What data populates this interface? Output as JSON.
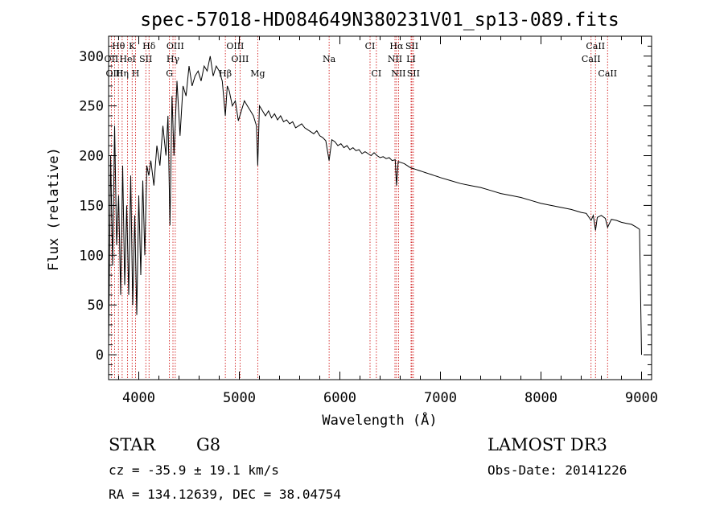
{
  "chart_data": {
    "type": "line",
    "title": "spec-57018-HD084649N380231V01_sp13-089.fits",
    "xlabel": "Wavelength (Å)",
    "ylabel": "Flux (relative)",
    "xlim": [
      3700,
      9100
    ],
    "ylim": [
      -25,
      320
    ],
    "xticks": [
      4000,
      5000,
      6000,
      7000,
      8000,
      9000
    ],
    "yticks": [
      0,
      50,
      100,
      150,
      200,
      250,
      300
    ],
    "series": [
      {
        "name": "flux",
        "x": [
          3700,
          3720,
          3740,
          3760,
          3780,
          3800,
          3820,
          3840,
          3860,
          3880,
          3900,
          3920,
          3940,
          3960,
          3980,
          4000,
          4020,
          4040,
          4060,
          4080,
          4100,
          4120,
          4150,
          4180,
          4210,
          4240,
          4270,
          4290,
          4310,
          4330,
          4350,
          4380,
          4410,
          4440,
          4470,
          4500,
          4530,
          4560,
          4590,
          4620,
          4650,
          4680,
          4710,
          4740,
          4770,
          4800,
          4830,
          4861,
          4880,
          4900,
          4930,
          4960,
          4990,
          5020,
          5050,
          5080,
          5110,
          5140,
          5170,
          5183,
          5200,
          5230,
          5260,
          5290,
          5320,
          5350,
          5380,
          5410,
          5440,
          5470,
          5500,
          5530,
          5560,
          5590,
          5620,
          5650,
          5680,
          5710,
          5740,
          5770,
          5800,
          5830,
          5860,
          5893,
          5920,
          5950,
          5980,
          6010,
          6040,
          6070,
          6100,
          6130,
          6160,
          6190,
          6220,
          6250,
          6280,
          6310,
          6340,
          6370,
          6400,
          6430,
          6460,
          6490,
          6520,
          6550,
          6563,
          6580,
          6610,
          6640,
          6670,
          6700,
          6730,
          6760,
          6790,
          6820,
          6850,
          6880,
          6910,
          6940,
          6970,
          7000,
          7100,
          7200,
          7300,
          7400,
          7500,
          7600,
          7700,
          7800,
          7900,
          8000,
          8100,
          8200,
          8300,
          8400,
          8450,
          8498,
          8520,
          8542,
          8560,
          8600,
          8640,
          8662,
          8700,
          8750,
          8800,
          8850,
          8900,
          8950,
          8980,
          8990,
          9000
        ],
        "y": [
          10,
          200,
          90,
          230,
          110,
          160,
          60,
          190,
          70,
          150,
          60,
          180,
          50,
          140,
          40,
          160,
          80,
          175,
          100,
          190,
          180,
          195,
          170,
          210,
          190,
          230,
          200,
          240,
          130,
          260,
          200,
          275,
          220,
          270,
          260,
          290,
          270,
          280,
          285,
          275,
          290,
          285,
          300,
          280,
          290,
          285,
          275,
          240,
          270,
          265,
          250,
          255,
          235,
          245,
          255,
          250,
          245,
          240,
          230,
          190,
          250,
          245,
          240,
          245,
          238,
          242,
          236,
          240,
          234,
          236,
          232,
          234,
          228,
          230,
          232,
          228,
          226,
          224,
          222,
          225,
          220,
          218,
          215,
          195,
          216,
          214,
          210,
          212,
          208,
          210,
          206,
          208,
          205,
          206,
          202,
          204,
          202,
          200,
          203,
          200,
          198,
          199,
          197,
          198,
          195,
          196,
          170,
          194,
          193,
          192,
          190,
          188,
          187,
          186,
          185,
          184,
          183,
          182,
          181,
          180,
          179,
          178,
          175,
          172,
          170,
          168,
          165,
          162,
          160,
          158,
          155,
          152,
          150,
          148,
          146,
          143,
          142,
          135,
          140,
          125,
          138,
          140,
          137,
          128,
          136,
          135,
          133,
          132,
          131,
          128,
          126,
          60,
          0
        ]
      }
    ],
    "spectral_lines": [
      {
        "name": "Hθ",
        "x": 3798,
        "row": 1
      },
      {
        "name": "OII",
        "x": 3727,
        "row": 2
      },
      {
        "name": "OIII",
        "x": 3760,
        "row": 3
      },
      {
        "name": "K",
        "x": 3934,
        "row": 1
      },
      {
        "name": "HeI",
        "x": 3889,
        "row": 2
      },
      {
        "name": "Hη",
        "x": 3835,
        "row": 3
      },
      {
        "name": "Hδ",
        "x": 4102,
        "row": 1
      },
      {
        "name": "SII",
        "x": 4070,
        "row": 2
      },
      {
        "name": "H",
        "x": 3968,
        "row": 3
      },
      {
        "name": "OIII",
        "x": 4363,
        "row": 1
      },
      {
        "name": "Hγ",
        "x": 4340,
        "row": 2
      },
      {
        "name": "G",
        "x": 4305,
        "row": 3
      },
      {
        "name": "OIII",
        "x": 4959,
        "row": 1
      },
      {
        "name": "OIII",
        "x": 5007,
        "row": 2
      },
      {
        "name": "Hβ",
        "x": 4861,
        "row": 3
      },
      {
        "name": "Mg",
        "x": 5183,
        "row": 3
      },
      {
        "name": "Na",
        "x": 5893,
        "row": 2
      },
      {
        "name": "CI",
        "x": 6300,
        "row": 1
      },
      {
        "name": "CI",
        "x": 6363,
        "row": 3
      },
      {
        "name": "Hα",
        "x": 6563,
        "row": 1
      },
      {
        "name": "NII",
        "x": 6548,
        "row": 2
      },
      {
        "name": "NII",
        "x": 6583,
        "row": 3
      },
      {
        "name": "SII",
        "x": 6716,
        "row": 1
      },
      {
        "name": "LI",
        "x": 6708,
        "row": 2
      },
      {
        "name": "SII",
        "x": 6731,
        "row": 3
      },
      {
        "name": "CaII",
        "x": 8542,
        "row": 1
      },
      {
        "name": "CaII",
        "x": 8498,
        "row": 2
      },
      {
        "name": "CaII",
        "x": 8662,
        "row": 3
      }
    ]
  },
  "footer": {
    "object_type": "STAR",
    "subclass": "G8",
    "survey": "LAMOST DR3",
    "redshift_text": "cz = -35.9 ± 19.1 km/s",
    "obs_date_text": "Obs-Date: 20141226",
    "coords_text": "RA = 134.12639, DEC =  38.04754"
  },
  "colors": {
    "line_marker": "#cc0000",
    "spectrum": "#000000",
    "axes": "#000000"
  }
}
